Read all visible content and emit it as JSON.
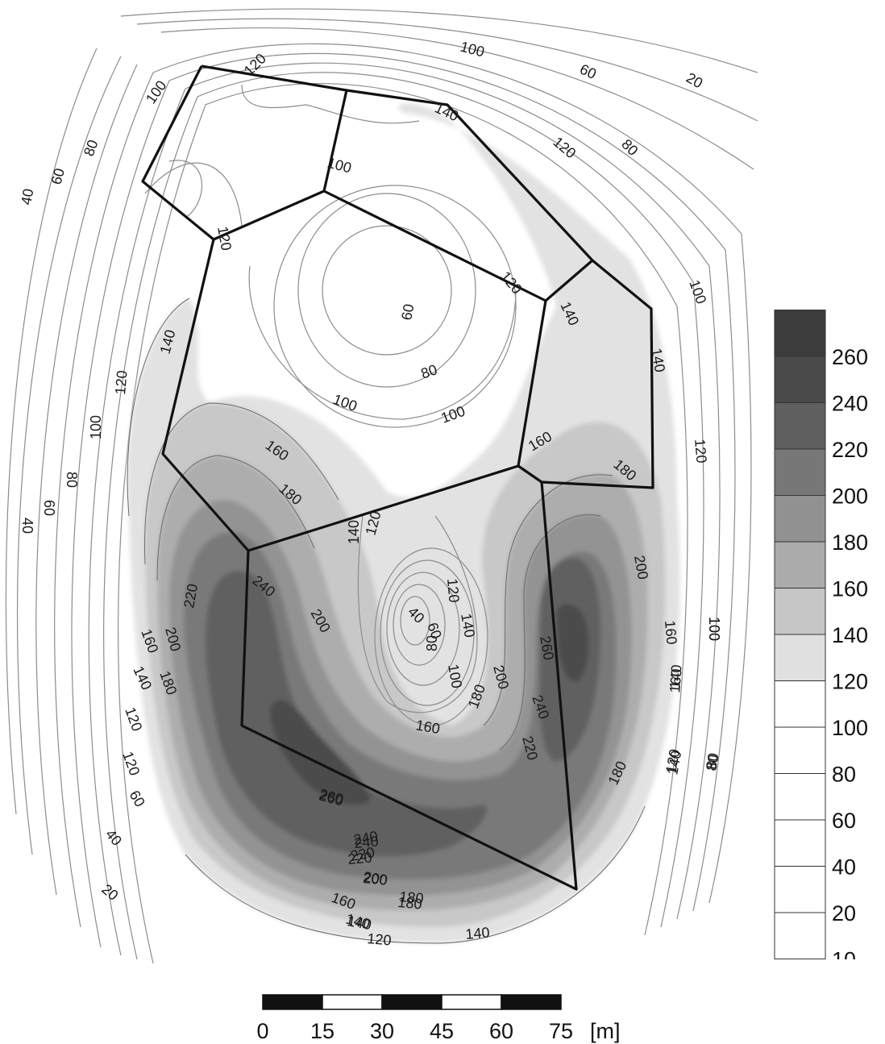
{
  "legend": {
    "entries": [
      {
        "label": "260",
        "color": "#4a4a4a"
      },
      {
        "label": "240",
        "color": "#5f5f5f"
      },
      {
        "label": "220",
        "color": "#777777"
      },
      {
        "label": "200",
        "color": "#919191"
      },
      {
        "label": "180",
        "color": "#ababab"
      },
      {
        "label": "160",
        "color": "#c6c6c6"
      },
      {
        "label": "140",
        "color": "#e0e0e0"
      },
      {
        "label": "120",
        "color": "#ffffff"
      },
      {
        "label": "100",
        "color": "#ffffff"
      },
      {
        "label": "80",
        "color": "#ffffff"
      },
      {
        "label": "60",
        "color": "#ffffff"
      },
      {
        "label": "40",
        "color": "#ffffff"
      },
      {
        "label": "20",
        "color": "#ffffff"
      },
      {
        "label": "10",
        "color": "#ffffff"
      }
    ],
    "top_swatch_color": "#3c3c3c"
  },
  "scale_bar": {
    "ticks": [
      "0",
      "15",
      "30",
      "45",
      "60",
      "75"
    ],
    "unit": "[m]"
  },
  "contour_labels": [
    "20",
    "60",
    "100",
    "120",
    "100",
    "80",
    "60",
    "40",
    "140",
    "120",
    "80",
    "100",
    "120",
    "100",
    "140",
    "120",
    "60",
    "80",
    "100",
    "140",
    "140",
    "100",
    "120",
    "100",
    "80",
    "60",
    "40",
    "160",
    "180",
    "120",
    "140",
    "160",
    "180",
    "200",
    "220",
    "240",
    "200",
    "40",
    "60",
    "80",
    "100",
    "120",
    "140",
    "160",
    "140",
    "120",
    "100",
    "80",
    "60",
    "40",
    "20",
    "160",
    "140",
    "120",
    "140",
    "180",
    "200",
    "220",
    "240",
    "260",
    "200",
    "260",
    "240",
    "220",
    "180",
    "200",
    "180",
    "160",
    "140",
    "120",
    "140",
    "160",
    "180",
    "200",
    "220",
    "240",
    "260",
    "160",
    "140",
    "120",
    "80",
    "180",
    "120",
    "100"
  ]
}
